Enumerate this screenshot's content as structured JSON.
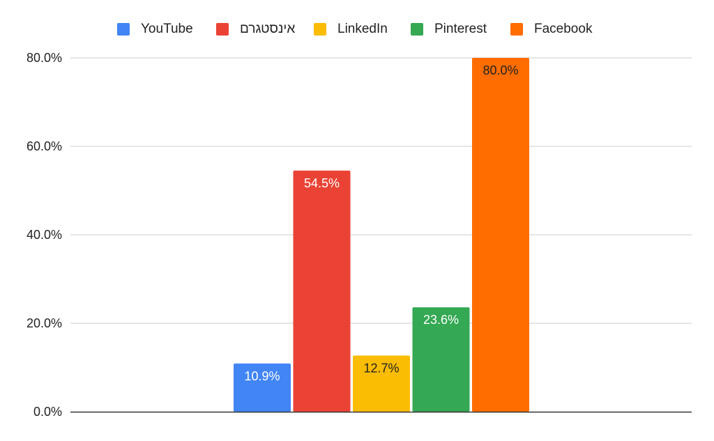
{
  "chart_data": {
    "type": "bar",
    "title": "",
    "xlabel": "",
    "ylabel": "",
    "ylim": [
      0,
      80
    ],
    "y_ticks": [
      "0.0%",
      "20.0%",
      "40.0%",
      "60.0%",
      "80.0%"
    ],
    "y_tick_values": [
      0,
      20,
      40,
      60,
      80
    ],
    "grid": true,
    "legend_position": "top",
    "series": [
      {
        "name": "YouTube",
        "value": 10.9,
        "label": "10.9%",
        "color": "#4285F4",
        "label_color": "#ffffff"
      },
      {
        "name": "אינסטגרם",
        "value": 54.5,
        "label": "54.5%",
        "color": "#EA4335",
        "label_color": "#ffffff"
      },
      {
        "name": "LinkedIn",
        "value": 12.7,
        "label": "12.7%",
        "color": "#FBBC04",
        "label_color": "#222222"
      },
      {
        "name": "Pinterest",
        "value": 23.6,
        "label": "23.6%",
        "color": "#34A853",
        "label_color": "#ffffff"
      },
      {
        "name": "Facebook",
        "value": 80.0,
        "label": "80.0%",
        "color": "#FF6D01",
        "label_color": "#222222"
      }
    ]
  }
}
